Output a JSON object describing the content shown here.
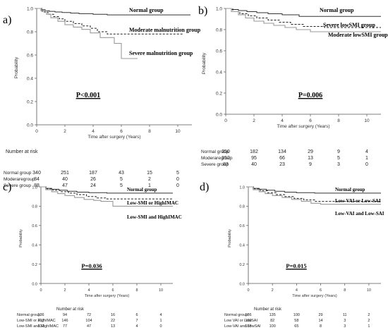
{
  "chart_data": [
    {
      "type": "line",
      "panel_label": "a)",
      "ylabel": "Probability",
      "xlabel": "Time after surgery (Years)",
      "xlim": [
        0,
        11
      ],
      "ylim": [
        0,
        1.0
      ],
      "xticks": [
        "0",
        "2",
        "4",
        "6",
        "8",
        "10"
      ],
      "yticks": [
        "0.0",
        "0.2",
        "0.4",
        "0.6",
        "0.8",
        "1.0"
      ],
      "p_value": "P<0.001",
      "risk_title": "Number at risk",
      "risk_times": [
        0,
        2,
        4,
        6,
        8,
        10
      ],
      "series": [
        {
          "name": "Normal group",
          "style": "solid",
          "color": "#333333",
          "x": [
            0,
            0.3,
            0.6,
            0.9,
            1.3,
            1.8,
            2.4,
            3.0,
            4.0,
            5.0,
            8.0
          ],
          "y": [
            1.0,
            0.99,
            0.98,
            0.975,
            0.97,
            0.965,
            0.96,
            0.955,
            0.95,
            0.945,
            0.945
          ]
        },
        {
          "name": "Moderate malnutrition group",
          "style": "dashed",
          "color": "#222222",
          "x": [
            0,
            0.4,
            0.8,
            1.2,
            1.6,
            2.0,
            2.6,
            3.2,
            3.8,
            4.3,
            5.0,
            7.0
          ],
          "y": [
            1.0,
            0.97,
            0.95,
            0.93,
            0.91,
            0.89,
            0.87,
            0.85,
            0.83,
            0.8,
            0.78,
            0.78
          ]
        },
        {
          "name": "Severe malnutrition group",
          "style": "solid",
          "color": "#999999",
          "x": [
            0,
            0.3,
            0.7,
            1.0,
            1.5,
            2.0,
            2.6,
            3.2,
            3.8,
            4.5,
            5.5,
            6.0,
            7.0
          ],
          "y": [
            1.0,
            0.98,
            0.95,
            0.92,
            0.89,
            0.86,
            0.84,
            0.82,
            0.79,
            0.75,
            0.7,
            0.57,
            0.57
          ]
        }
      ],
      "risk_rows": [
        {
          "label": "Normal group",
          "values": [
            "340",
            "251",
            "187",
            "43",
            "15",
            "5"
          ]
        },
        {
          "label": "Moderaregroup",
          "values": [
            "84",
            "40",
            "26",
            "5",
            "2",
            "0"
          ]
        },
        {
          "label": "Severe group",
          "values": [
            "88",
            "47",
            "24",
            "5",
            "1",
            "0"
          ]
        }
      ]
    },
    {
      "type": "line",
      "panel_label": "b)",
      "ylabel": "Probability",
      "xlabel": "Time after surgery (Years)",
      "xlim": [
        0,
        11
      ],
      "ylim": [
        0,
        1.0
      ],
      "xticks": [
        "0",
        "2",
        "4",
        "6",
        "8",
        "10"
      ],
      "yticks": [
        "0.0",
        "0.2",
        "0.4",
        "0.6",
        "0.8",
        "1.0"
      ],
      "p_value": "P=0.006",
      "risk_title": "",
      "risk_times": [
        0,
        2,
        4,
        6,
        8,
        10
      ],
      "series": [
        {
          "name": "Normal group",
          "style": "solid",
          "color": "#333333",
          "x": [
            0,
            0.4,
            0.9,
            1.5,
            2.2,
            3.0,
            4.0,
            5.2,
            10.5
          ],
          "y": [
            1.0,
            0.99,
            0.98,
            0.97,
            0.96,
            0.95,
            0.94,
            0.925,
            0.925
          ]
        },
        {
          "name": "Severe lowSMI group",
          "style": "dashed",
          "color": "#222222",
          "x": [
            0,
            0.5,
            1.0,
            1.6,
            2.2,
            3.0,
            3.8,
            4.6,
            5.5,
            7.0,
            10.5
          ],
          "y": [
            1.0,
            0.97,
            0.95,
            0.93,
            0.91,
            0.89,
            0.87,
            0.85,
            0.83,
            0.82,
            0.82
          ]
        },
        {
          "name": "Moderate lowSMI group",
          "style": "solid",
          "color": "#999999",
          "x": [
            0,
            0.4,
            0.9,
            1.4,
            2.0,
            2.7,
            3.4,
            4.2,
            5.0,
            6.0,
            10.5
          ],
          "y": [
            1.0,
            0.97,
            0.94,
            0.91,
            0.88,
            0.86,
            0.84,
            0.82,
            0.8,
            0.78,
            0.78
          ]
        }
      ],
      "risk_rows": [
        {
          "label": "Normal group",
          "values": [
            "250",
            "182",
            "134",
            "29",
            "9",
            "4"
          ]
        },
        {
          "label": "Moderaregroup",
          "values": [
            "152",
            "95",
            "66",
            "13",
            "5",
            "1"
          ]
        },
        {
          "label": "Severe group",
          "values": [
            "83",
            "40",
            "23",
            "9",
            "3",
            "0"
          ]
        }
      ]
    },
    {
      "type": "line",
      "panel_label": "c)",
      "ylabel": "Probability",
      "xlabel": "Time after surgery (Years)",
      "xlim": [
        0,
        11
      ],
      "ylim": [
        0,
        1.0
      ],
      "xticks": [
        "0",
        "2",
        "4",
        "6",
        "8",
        "10"
      ],
      "yticks": [
        "0.0",
        "0.2",
        "0.4",
        "0.6",
        "0.8",
        "1.0"
      ],
      "p_value": "P=0.036",
      "risk_title": "Number at risk",
      "risk_times": [
        0,
        2,
        4,
        6,
        8,
        10
      ],
      "series": [
        {
          "name": "Normal group",
          "style": "solid",
          "color": "#333333",
          "x": [
            0,
            0.4,
            0.9,
            1.5,
            2.2,
            3.0,
            4.0,
            5.5,
            10.5
          ],
          "y": [
            1.0,
            0.985,
            0.975,
            0.965,
            0.955,
            0.945,
            0.94,
            0.935,
            0.935
          ]
        },
        {
          "name": "Low-SMI or HighIMAC",
          "style": "dashed",
          "color": "#222222",
          "x": [
            0,
            0.5,
            1.0,
            1.6,
            2.3,
            3.0,
            3.8,
            4.6,
            5.5,
            10.5
          ],
          "y": [
            1.0,
            0.98,
            0.965,
            0.95,
            0.935,
            0.92,
            0.9,
            0.885,
            0.875,
            0.875
          ]
        },
        {
          "name": "Low-SMI and HighIMAC",
          "style": "solid",
          "color": "#999999",
          "x": [
            0,
            0.4,
            0.9,
            1.4,
            2.0,
            2.8,
            3.6,
            4.4,
            5.0,
            6.0,
            10.5
          ],
          "y": [
            1.0,
            0.97,
            0.95,
            0.93,
            0.91,
            0.89,
            0.87,
            0.86,
            0.85,
            0.8,
            0.8
          ]
        }
      ],
      "risk_rows": [
        {
          "label": "Normal group",
          "values": [
            "136",
            "94",
            "72",
            "16",
            "6",
            "4"
          ]
        },
        {
          "label": "Low-SMI or HighIMAC",
          "values": [
            "217",
            "146",
            "104",
            "22",
            "7",
            "1"
          ]
        },
        {
          "label": "Low-SMI and HighIMAC",
          "values": [
            "132",
            "77",
            "47",
            "13",
            "4",
            "0"
          ]
        }
      ]
    },
    {
      "type": "line",
      "panel_label": "d)",
      "ylabel": "Probability",
      "xlabel": "Time after surgery (Years)",
      "xlim": [
        0,
        11
      ],
      "ylim": [
        0,
        1.0
      ],
      "xticks": [
        "0",
        "2",
        "4",
        "6",
        "8",
        "10"
      ],
      "yticks": [
        "0.0",
        "0.2",
        "0.4",
        "0.6",
        "0.8",
        "1.0"
      ],
      "p_value": "P=0.015",
      "risk_title": "Number at risk",
      "risk_times": [
        0,
        2,
        4,
        6,
        8,
        10
      ],
      "series": [
        {
          "name": "Normal group",
          "style": "solid",
          "color": "#333333",
          "x": [
            0,
            0.4,
            0.9,
            1.5,
            2.2,
            3.0,
            4.0,
            5.5,
            10.5
          ],
          "y": [
            1.0,
            0.985,
            0.975,
            0.965,
            0.955,
            0.945,
            0.94,
            0.935,
            0.935
          ]
        },
        {
          "name": "Low-VAI or Low-SAI",
          "style": "dashed",
          "color": "#222222",
          "x": [
            0,
            0.5,
            1.0,
            1.6,
            2.3,
            3.0,
            3.8,
            4.6,
            5.5,
            10.5
          ],
          "y": [
            1.0,
            0.98,
            0.96,
            0.94,
            0.92,
            0.9,
            0.88,
            0.865,
            0.85,
            0.85
          ]
        },
        {
          "name": "Low-VAI and Low-SAI",
          "style": "solid",
          "color": "#999999",
          "x": [
            0,
            0.4,
            0.9,
            1.4,
            2.0,
            2.8,
            3.6,
            4.4,
            5.2,
            6.0,
            10.5
          ],
          "y": [
            1.0,
            0.97,
            0.95,
            0.93,
            0.91,
            0.89,
            0.87,
            0.85,
            0.83,
            0.82,
            0.82
          ]
        }
      ],
      "risk_rows": [
        {
          "label": "Normal group",
          "values": [
            "186",
            "135",
            "100",
            "29",
            "11",
            "2"
          ]
        },
        {
          "label": "Low VAI or LowSAI",
          "values": [
            "109",
            "82",
            "58",
            "14",
            "3",
            "2"
          ]
        },
        {
          "label": "Low-VAI and LowSAI",
          "values": [
            "188",
            "100",
            "65",
            "8",
            "3",
            "1"
          ]
        }
      ]
    }
  ]
}
